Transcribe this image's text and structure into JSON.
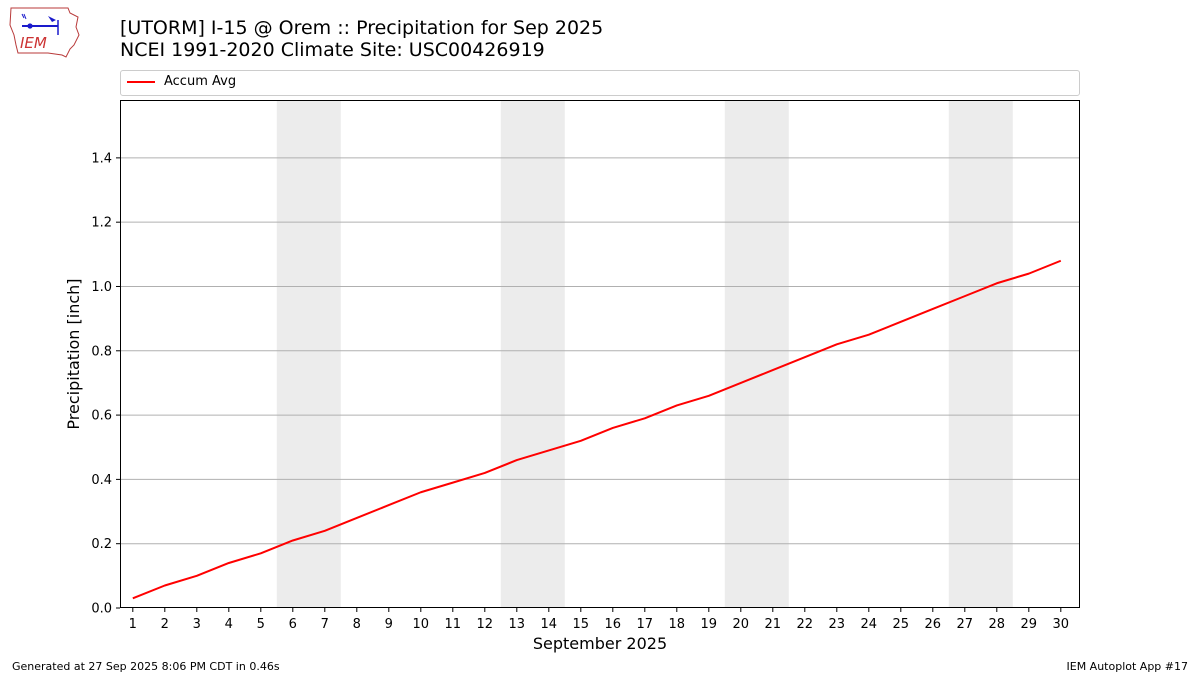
{
  "header": {
    "title_line1": "[UTORM] I-15 @ Orem  :: Precipitation for Sep 2025",
    "title_line2": "NCEI 1991-2020 Climate Site: USC00426919"
  },
  "logo": {
    "text": "IEM"
  },
  "footer": {
    "left": "Generated at 27 Sep 2025 8:06 PM CDT in 0.46s",
    "right": "IEM Autoplot App #17"
  },
  "colors": {
    "line": "#ff0000",
    "weekend_band": "#ececec",
    "grid": "#b0b0b0"
  },
  "chart_data": {
    "type": "line",
    "xlabel": "September 2025",
    "ylabel": "Precipitation [inch]",
    "xlim": [
      0.6,
      30.6
    ],
    "ylim": [
      0.0,
      1.58
    ],
    "grid": "horizontal",
    "legend_placement": "top",
    "x": [
      1,
      2,
      3,
      4,
      5,
      6,
      7,
      8,
      9,
      10,
      11,
      12,
      13,
      14,
      15,
      16,
      17,
      18,
      19,
      20,
      21,
      22,
      23,
      24,
      25,
      26,
      27,
      28,
      29,
      30
    ],
    "x_tick_labels": [
      "1",
      "2",
      "3",
      "4",
      "5",
      "6",
      "7",
      "8",
      "9",
      "10",
      "11",
      "12",
      "13",
      "14",
      "15",
      "16",
      "17",
      "18",
      "19",
      "20",
      "21",
      "22",
      "23",
      "24",
      "25",
      "26",
      "27",
      "28",
      "29",
      "30"
    ],
    "y_ticks": [
      0.0,
      0.2,
      0.4,
      0.6,
      0.8,
      1.0,
      1.2,
      1.4
    ],
    "y_tick_labels": [
      "0.0",
      "0.2",
      "0.4",
      "0.6",
      "0.8",
      "1.0",
      "1.2",
      "1.4"
    ],
    "weekend_bands": [
      [
        5.5,
        7.5
      ],
      [
        12.5,
        14.5
      ],
      [
        19.5,
        21.5
      ],
      [
        26.5,
        28.5
      ]
    ],
    "series": [
      {
        "name": "Accum Avg",
        "color": "#ff0000",
        "values": [
          0.03,
          0.07,
          0.1,
          0.14,
          0.17,
          0.21,
          0.24,
          0.28,
          0.32,
          0.36,
          0.39,
          0.42,
          0.46,
          0.49,
          0.52,
          0.56,
          0.59,
          0.63,
          0.66,
          0.7,
          0.74,
          0.78,
          0.82,
          0.85,
          0.89,
          0.93,
          0.97,
          1.01,
          1.04,
          1.08
        ]
      }
    ]
  }
}
